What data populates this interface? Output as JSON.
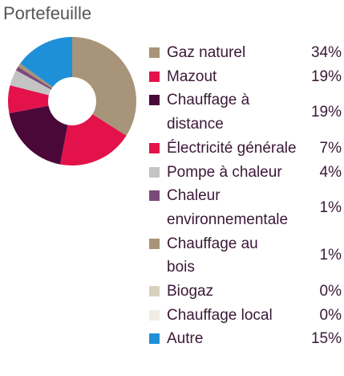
{
  "chart_data": {
    "type": "pie",
    "title": "Portefeuille",
    "donut": true,
    "categories": [
      "Gaz naturel",
      "Mazout",
      "Chauffage à distance",
      "Électricité générale",
      "Pompe à chaleur",
      "Chaleur environnementale",
      "Chauffage au bois",
      "Biogaz",
      "Chauffage local",
      "Autre"
    ],
    "values": [
      34,
      19,
      19,
      7,
      4,
      1,
      1,
      0,
      0,
      15
    ],
    "value_labels": [
      "34%",
      "19%",
      "19%",
      "7%",
      "4%",
      "1%",
      "1%",
      "0%",
      "0%",
      "15%"
    ],
    "colors": [
      "#a89478",
      "#e3124b",
      "#4a0838",
      "#e3124b",
      "#c4c4c4",
      "#7c4a78",
      "#a89478",
      "#d9d1bd",
      "#f1ede4",
      "#1e90d8"
    ],
    "legend": "right"
  }
}
